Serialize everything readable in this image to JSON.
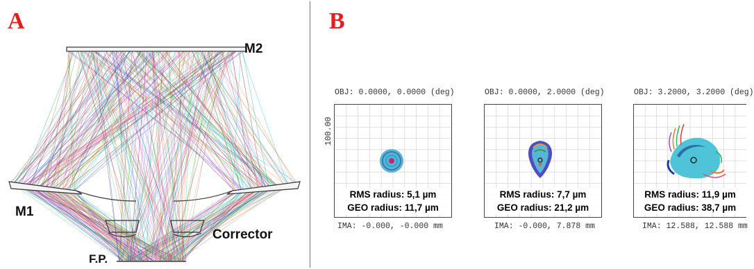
{
  "panel_a": {
    "letter": "A",
    "labels": {
      "m1": "M1",
      "m2": "M2",
      "corrector": "Corrector",
      "fp": "F.P."
    }
  },
  "panel_b": {
    "letter": "B",
    "spots": [
      {
        "obj": "OBJ: 0.0000, 0.0000 (deg)",
        "scale": "100.00",
        "rms": "RMS radius: 5,1 µm",
        "geo": "GEO radius: 11,7 µm",
        "ima": "IMA: -0.000, -0.000 mm"
      },
      {
        "obj": "OBJ: 0.0000, 2.0000 (deg)",
        "rms": "RMS radius: 7,7 µm",
        "geo": "GEO radius: 21,2 µm",
        "ima": "IMA: -0.000, 7.878 mm"
      },
      {
        "obj": "OBJ: 3.2000, 3.2000 (deg)",
        "rms": "RMS radius: 11,9 µm",
        "geo": "GEO radius: 38,7 µm",
        "ima": "IMA: 12.588, 12.588 mm"
      }
    ]
  },
  "colors": {
    "letters": "#e0201b",
    "rays": [
      "#e6194b",
      "#3cb44b",
      "#4363d8",
      "#f58231",
      "#911eb4",
      "#42d4f4",
      "#f032e6",
      "#bfef45",
      "#e6beff",
      "#9a6324",
      "#800000",
      "#1a237e",
      "#00a86b",
      "#ff69b4",
      "#7f7f00",
      "#00bfff"
    ]
  }
}
